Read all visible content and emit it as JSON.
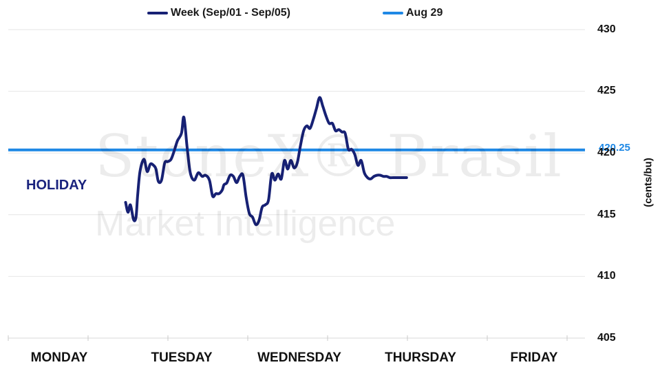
{
  "chart_data": {
    "type": "line",
    "categories": [
      "MONDAY",
      "TUESDAY",
      "WEDNESDAY",
      "THURSDAY",
      "FRIDAY"
    ],
    "ylim": [
      405,
      430
    ],
    "yticks": [
      405,
      410,
      415,
      420,
      425,
      430
    ],
    "ylabel": "(cents/bu)",
    "grid": true,
    "legend_position": "top",
    "annotation": "HOLIDAY",
    "series": [
      {
        "name": "Week (Sep/01 - Sep/05)",
        "color": "#172174",
        "x": [
          1.47,
          1.5,
          1.53,
          1.57,
          1.6,
          1.62,
          1.65,
          1.7,
          1.74,
          1.78,
          1.82,
          1.85,
          1.88,
          1.92,
          1.96,
          2.0,
          2.04,
          2.08,
          2.12,
          2.17,
          2.2,
          2.24,
          2.28,
          2.33,
          2.38,
          2.43,
          2.47,
          2.52,
          2.56,
          2.6,
          2.64,
          2.68,
          2.7,
          2.72,
          2.74,
          2.78,
          2.82,
          2.86,
          2.9,
          2.94,
          2.98,
          3.02,
          3.06,
          3.1,
          3.14,
          3.18,
          3.22,
          3.26,
          3.3,
          3.34,
          3.38,
          3.42,
          3.46,
          3.5,
          3.54,
          3.58,
          3.62,
          3.66,
          3.7,
          3.74,
          3.78,
          3.82,
          3.86,
          3.9,
          3.94,
          3.98,
          4.02,
          4.06,
          4.1,
          4.14,
          4.18,
          4.22,
          4.26,
          4.3,
          4.34,
          4.38,
          4.42,
          4.46,
          4.5,
          4.54,
          4.58,
          4.62,
          4.66,
          4.7,
          4.74,
          4.78,
          4.82,
          4.86,
          4.9,
          4.93,
          4.95,
          4.97,
          4.99
        ],
        "values": [
          416.0,
          415.2,
          415.8,
          414.6,
          414.8,
          416.5,
          418.5,
          419.5,
          418.5,
          419.1,
          419.0,
          418.7,
          417.7,
          417.8,
          419.2,
          419.3,
          419.5,
          420.2,
          421.0,
          421.6,
          422.9,
          420.5,
          418.4,
          417.8,
          418.4,
          418.1,
          418.2,
          417.8,
          416.5,
          416.7,
          416.7,
          417.0,
          417.4,
          417.5,
          417.6,
          418.2,
          418.1,
          417.6,
          418.1,
          418.2,
          416.4,
          415.1,
          414.8,
          414.2,
          414.5,
          415.6,
          415.8,
          416.2,
          418.3,
          417.8,
          418.3,
          417.9,
          419.4,
          418.7,
          419.4,
          418.8,
          419.2,
          420.6,
          421.8,
          422.2,
          422.0,
          422.7,
          423.6,
          424.5,
          423.8,
          423.0,
          422.4,
          422.4,
          421.8,
          421.9,
          421.7,
          421.6,
          420.3,
          420.3,
          419.9,
          419.0,
          419.4,
          418.4,
          418.0,
          417.9,
          418.1,
          418.2,
          418.2,
          418.1,
          418.1,
          418.0,
          418.0,
          418.0,
          418.0,
          418.0,
          418.0,
          418.0,
          418.0
        ]
      },
      {
        "name": "Aug 29",
        "color": "#1e88e5",
        "value": 420.25,
        "value_label": "420.25"
      }
    ],
    "watermark": [
      "StoneX® Brasil",
      "Market Intelligence"
    ]
  }
}
